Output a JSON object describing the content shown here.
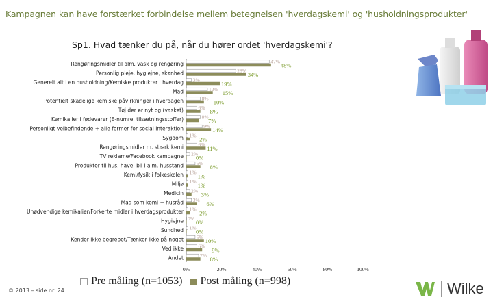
{
  "page": {
    "title": "Kampagnen kan have forstærket forbindelse mellem betegnelsen 'hverdagskemi' og 'husholdningsprodukter'",
    "question": "Sp1. Hvad tænker du på, når du hører ordet 'hverdagskemi'?",
    "footer": "© 2013 – side nr. 24",
    "logo_text": "Wilke"
  },
  "colors": {
    "pre": "#ffffff",
    "pre_stroke": "#999999",
    "post": "#8c8c5a",
    "pre_label": "#b8a39a",
    "post_label": "#7a9a2a",
    "axis": "#555555",
    "title": "#6a7d3a"
  },
  "chart_data": {
    "type": "bar",
    "orientation": "horizontal",
    "xlim": [
      0,
      100
    ],
    "x_ticks": [
      "0%",
      "20%",
      "40%",
      "60%",
      "80%",
      "100%"
    ],
    "categories": [
      "Rengøringsmidler til alm. vask og rengøring",
      "Personlig pleje, hygiejne, skønhed",
      "Generelt alt i en husholdning/Kemiske produkter i hverdag",
      "Mad",
      "Potentielt skadelige kemiske påvirkninger i hverdagen",
      "Tøj der er nyt og (vasket)",
      "Kemikalier i fødevarer (E-numre, tilsætningsstoffer)",
      "Personligt velbefindende + alle former for social interaktion",
      "Sygdom",
      "Rengøringsmidler m. stærk kemi",
      "TV reklame/Facebook kampagne",
      "Produkter til hus, have, bil i alm. husstand",
      "Kemi/fysik i folkeskolen",
      "Miljø",
      "Medicin",
      "Mad som kemi + husråd",
      "Unødvendige kemikalier/Forkerte midler i hverdagsprodukter",
      "Hygiejne",
      "Sundhed",
      "Kender ikke begrebet/Tænker ikke på noget",
      "Ved ikke",
      "Andet"
    ],
    "series": [
      {
        "name": "Pre måling (n=1053)",
        "values": [
          47,
          28,
          3,
          12,
          8,
          6,
          8,
          9,
          1,
          6,
          2,
          5,
          1,
          1,
          2,
          3,
          1,
          0,
          1,
          5,
          6,
          7
        ],
        "labels": [
          "47%",
          "28%",
          "3%",
          "12%",
          "8%",
          "6%",
          "8%",
          "9%",
          "1%",
          "6%",
          "2%",
          "5%",
          "1%",
          "1%",
          "2%",
          "3%",
          "1%",
          "0%",
          "1%",
          "5%",
          "6%",
          "7%"
        ]
      },
      {
        "name": "Post måling (n=998)",
        "values": [
          48,
          34,
          19,
          15,
          10,
          8,
          7,
          14,
          2,
          11,
          0,
          8,
          1,
          1,
          3,
          6,
          2,
          0,
          0,
          10,
          9,
          8
        ],
        "labels": [
          "48%",
          "34%",
          "19%",
          "15%",
          "10%",
          "8%",
          "7%",
          "14%",
          "2%",
          "11%",
          "0%",
          "8%",
          "1%",
          "1%",
          "3%",
          "6%",
          "2%",
          "0%",
          "0%",
          "10%",
          "9%",
          "8%"
        ]
      }
    ],
    "legend_placement": "bottom"
  }
}
